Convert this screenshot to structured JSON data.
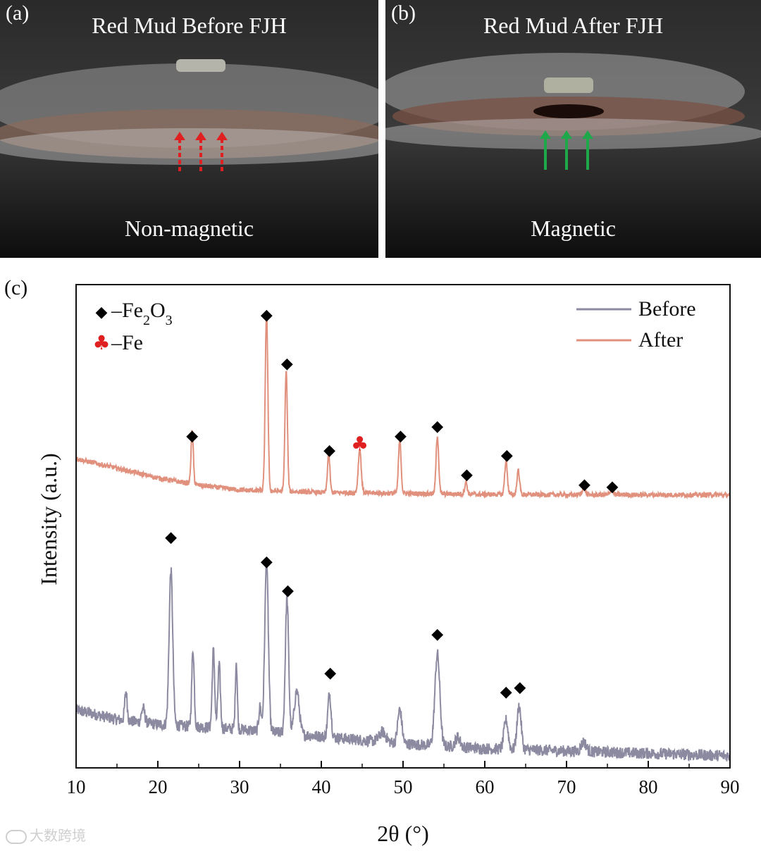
{
  "panel_a": {
    "letter": "(a)",
    "title": "Red Mud Before FJH",
    "caption": "Non-magnetic",
    "arrow_color": "#e02020"
  },
  "panel_b": {
    "letter": "(b)",
    "title": "Red Mud After FJH",
    "caption": "Magnetic",
    "arrow_color": "#1fa84a"
  },
  "panel_c": {
    "letter": "(c)"
  },
  "watermark": "大数跨境",
  "chart_data": {
    "type": "line",
    "title": "",
    "xlabel": "2θ (°)",
    "ylabel": "Intensity (a.u.)",
    "xlim": [
      10,
      90
    ],
    "ylim": [
      0,
      100
    ],
    "xticks": [
      10,
      20,
      30,
      40,
      50,
      60,
      70,
      80,
      90
    ],
    "grid": false,
    "legend_position": "top-right",
    "series": [
      {
        "name": "Before",
        "color": "#8c8aa0",
        "baseline": [
          [
            10,
            12
          ],
          [
            15,
            10
          ],
          [
            20,
            9
          ],
          [
            30,
            8
          ],
          [
            40,
            6.5
          ],
          [
            50,
            5
          ],
          [
            60,
            4
          ],
          [
            70,
            3.5
          ],
          [
            80,
            3
          ],
          [
            90,
            2.5
          ]
        ],
        "peaks": [
          {
            "x": 16.1,
            "h": 6,
            "w": 0.15
          },
          {
            "x": 18.2,
            "h": 3,
            "w": 0.2
          },
          {
            "x": 21.6,
            "h": 32,
            "w": 0.22
          },
          {
            "x": 24.3,
            "h": 16,
            "w": 0.15
          },
          {
            "x": 26.8,
            "h": 16,
            "w": 0.15
          },
          {
            "x": 27.5,
            "h": 13,
            "w": 0.15
          },
          {
            "x": 29.6,
            "h": 14,
            "w": 0.12
          },
          {
            "x": 32.5,
            "h": 5,
            "w": 0.15
          },
          {
            "x": 33.3,
            "h": 35,
            "w": 0.22
          },
          {
            "x": 35.8,
            "h": 28,
            "w": 0.2
          },
          {
            "x": 37.0,
            "h": 9,
            "w": 0.3
          },
          {
            "x": 41.0,
            "h": 9,
            "w": 0.2
          },
          {
            "x": 47.5,
            "h": 2,
            "w": 0.4
          },
          {
            "x": 49.6,
            "h": 7,
            "w": 0.25
          },
          {
            "x": 54.2,
            "h": 19,
            "w": 0.3
          },
          {
            "x": 56.7,
            "h": 2,
            "w": 0.3
          },
          {
            "x": 62.6,
            "h": 6,
            "w": 0.25
          },
          {
            "x": 64.2,
            "h": 9,
            "w": 0.25
          },
          {
            "x": 72.1,
            "h": 2,
            "w": 0.3
          }
        ],
        "noise": 1.2,
        "offset": 0
      },
      {
        "name": "After",
        "color": "#e0907c",
        "baseline": [
          [
            10,
            9
          ],
          [
            15,
            7
          ],
          [
            20,
            5
          ],
          [
            25,
            3.5
          ],
          [
            30,
            2.5
          ],
          [
            40,
            2
          ],
          [
            50,
            1.8
          ],
          [
            60,
            1.6
          ],
          [
            70,
            1.5
          ],
          [
            80,
            1.5
          ],
          [
            90,
            1.5
          ]
        ],
        "peaks": [
          {
            "x": 24.2,
            "h": 11,
            "w": 0.14
          },
          {
            "x": 33.3,
            "h": 37,
            "w": 0.16
          },
          {
            "x": 35.7,
            "h": 25,
            "w": 0.15
          },
          {
            "x": 40.9,
            "h": 8,
            "w": 0.15
          },
          {
            "x": 44.7,
            "h": 9,
            "w": 0.18
          },
          {
            "x": 49.6,
            "h": 11,
            "w": 0.16
          },
          {
            "x": 54.2,
            "h": 12,
            "w": 0.16
          },
          {
            "x": 57.7,
            "h": 2.5,
            "w": 0.15
          },
          {
            "x": 62.6,
            "h": 7,
            "w": 0.16
          },
          {
            "x": 64.1,
            "h": 5,
            "w": 0.16
          },
          {
            "x": 72.1,
            "h": 1.5,
            "w": 0.2
          },
          {
            "x": 75.5,
            "h": 1,
            "w": 0.2
          }
        ],
        "noise": 0.5,
        "offset": 55
      }
    ],
    "markers": [
      {
        "symbol": "◆",
        "phase": "Fe2O3",
        "series": "After",
        "x": 24.2,
        "y": 69
      },
      {
        "symbol": "◆",
        "phase": "Fe2O3",
        "series": "After",
        "x": 33.3,
        "y": 94
      },
      {
        "symbol": "◆",
        "phase": "Fe2O3",
        "series": "After",
        "x": 35.8,
        "y": 84
      },
      {
        "symbol": "◆",
        "phase": "Fe2O3",
        "series": "After",
        "x": 41.0,
        "y": 66
      },
      {
        "symbol": "♣",
        "phase": "Fe",
        "series": "After",
        "x": 44.7,
        "y": 67
      },
      {
        "symbol": "◆",
        "phase": "Fe2O3",
        "series": "After",
        "x": 49.7,
        "y": 69
      },
      {
        "symbol": "◆",
        "phase": "Fe2O3",
        "series": "After",
        "x": 54.2,
        "y": 71
      },
      {
        "symbol": "◆",
        "phase": "Fe2O3",
        "series": "After",
        "x": 57.8,
        "y": 61
      },
      {
        "symbol": "◆",
        "phase": "Fe2O3",
        "series": "After",
        "x": 62.7,
        "y": 65
      },
      {
        "symbol": "◆",
        "phase": "Fe2O3",
        "series": "After",
        "x": 72.2,
        "y": 59
      },
      {
        "symbol": "◆",
        "phase": "Fe2O3",
        "series": "After",
        "x": 75.6,
        "y": 58.5
      },
      {
        "symbol": "◆",
        "phase": "Fe2O3",
        "series": "Before",
        "x": 21.6,
        "y": 48
      },
      {
        "symbol": "◆",
        "phase": "Fe2O3",
        "series": "Before",
        "x": 33.3,
        "y": 43
      },
      {
        "symbol": "◆",
        "phase": "Fe2O3",
        "series": "Before",
        "x": 35.9,
        "y": 37
      },
      {
        "symbol": "◆",
        "phase": "Fe2O3",
        "series": "Before",
        "x": 41.1,
        "y": 20
      },
      {
        "symbol": "◆",
        "phase": "Fe2O3",
        "series": "Before",
        "x": 54.2,
        "y": 28
      },
      {
        "symbol": "◆",
        "phase": "Fe2O3",
        "series": "Before",
        "x": 62.6,
        "y": 16
      },
      {
        "symbol": "◆",
        "phase": "Fe2O3",
        "series": "Before",
        "x": 64.3,
        "y": 17
      }
    ],
    "phase_legend": [
      {
        "symbol": "◆",
        "color": "#000000",
        "label": "–Fe",
        "sub1": "2",
        "mid": "O",
        "sub2": "3"
      },
      {
        "symbol": "♣",
        "color": "#e02020",
        "label": "–Fe",
        "sub1": "",
        "mid": "",
        "sub2": ""
      }
    ]
  }
}
